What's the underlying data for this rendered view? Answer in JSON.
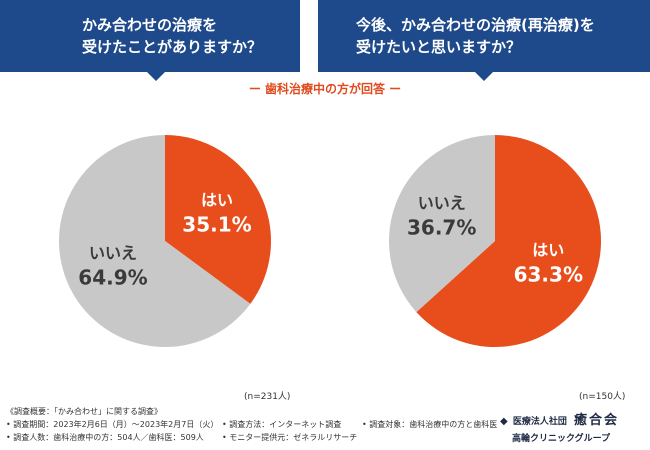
{
  "question_left": {
    "line1": "かみ合わせの治療を",
    "line2": "受けたことがありますか？"
  },
  "question_right": {
    "line1": "今後、かみ合わせの治療(再治療)を",
    "line2": "受けたいと思いますか？"
  },
  "subtitle": "ー 歯科治療中の方が回答 ー",
  "chart_data": [
    {
      "type": "pie",
      "title": "かみ合わせの治療を受けたことがありますか？",
      "slices": [
        {
          "label": "はい",
          "value": 35.1,
          "value_text": "35.1%",
          "color": "#e84e1c"
        },
        {
          "label": "いいえ",
          "value": 64.9,
          "value_text": "64.9%",
          "color": "#c8c8c8"
        }
      ],
      "n_label": "(n=231人)"
    },
    {
      "type": "pie",
      "title": "今後、かみ合わせの治療(再治療)を受けたいと思いますか？",
      "slices": [
        {
          "label": "はい",
          "value": 63.3,
          "value_text": "63.3%",
          "color": "#e84e1c"
        },
        {
          "label": "いいえ",
          "value": 36.7,
          "value_text": "36.7%",
          "color": "#c8c8c8"
        }
      ],
      "n_label": "(n=150人)"
    }
  ],
  "footer": {
    "survey_title": "《調査概要：「かみ合わせ」に関する調査》",
    "period": "• 調査期間：2023年2月6日（月）～2023年2月7日（火）",
    "respondents": "• 調査人数：歯科治療中の方：504人／歯科医：509人",
    "method": "• 調査方法：インターネット調査",
    "provider": "• モニター提供元：ゼネラルリサーチ",
    "target": "• 調査対象：歯科治療中の方と歯科医"
  },
  "logo": {
    "mark": "◆",
    "org": "医療法人社団",
    "name": "癒合会",
    "sub": "高輪クリニックグループ"
  },
  "colors": {
    "navy": "#1e4a8c",
    "orange": "#e84e1c",
    "gray": "#c8c8c8"
  }
}
